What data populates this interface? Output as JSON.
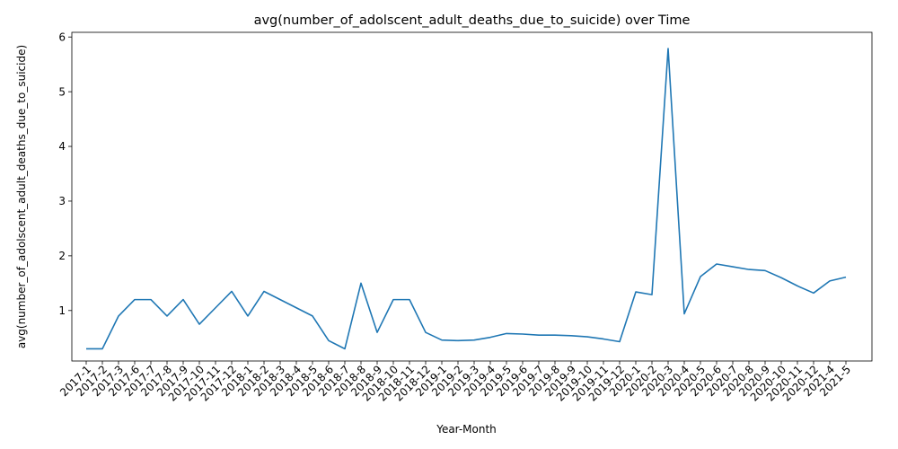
{
  "chart_data": {
    "type": "line",
    "title": "avg(number_of_adolscent_adult_deaths_due_to_suicide) over Time",
    "xlabel": "Year-Month",
    "ylabel": "avg(number_of_adolscent_adult_deaths_due_to_suicide)",
    "ylim": [
      0.3,
      6
    ],
    "yticks": [
      1,
      2,
      3,
      4,
      5,
      6
    ],
    "grid": false,
    "line_color": "#1f77b4",
    "categories": [
      "2017-1",
      "2017-2",
      "2017-3",
      "2017-6",
      "2017-7",
      "2017-8",
      "2017-9",
      "2017-10",
      "2017-11",
      "2017-12",
      "2018-1",
      "2018-2",
      "2018-3",
      "2018-4",
      "2018-5",
      "2018-6",
      "2018-7",
      "2018-8",
      "2018-9",
      "2018-10",
      "2018-11",
      "2018-12",
      "2019-1",
      "2019-2",
      "2019-3",
      "2019-4",
      "2019-5",
      "2019-6",
      "2019-7",
      "2019-8",
      "2019-9",
      "2019-10",
      "2019-11",
      "2019-12",
      "2020-1",
      "2020-2",
      "2020-3",
      "2020-4",
      "2020-5",
      "2020-6",
      "2020-7",
      "2020-8",
      "2020-9",
      "2020-10",
      "2020-11",
      "2020-12",
      "2021-4",
      "2021-5"
    ],
    "series": [
      {
        "values": [
          0.3,
          0.3,
          0.9,
          1.2,
          1.2,
          0.9,
          1.2,
          0.75,
          1.05,
          1.35,
          0.9,
          1.35,
          1.2,
          1.05,
          0.9,
          0.45,
          0.3,
          1.5,
          0.6,
          1.2,
          1.2,
          0.6,
          0.46,
          0.45,
          0.46,
          0.51,
          0.58,
          0.57,
          0.55,
          0.55,
          0.54,
          0.52,
          0.48,
          0.43,
          1.34,
          1.29,
          5.79,
          0.94,
          1.62,
          1.85,
          1.8,
          1.75,
          1.73,
          1.6,
          1.45,
          1.32,
          1.54,
          1.61
        ]
      }
    ]
  }
}
